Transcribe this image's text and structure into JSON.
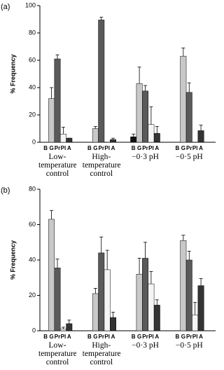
{
  "chart_data": [
    {
      "type": "bar",
      "panel_label": "(a)",
      "y_label": "% Frequency",
      "categories": [
        "Low-temperature control",
        "High-temperature control",
        "−0·3 pH",
        "−0·5 pH"
      ],
      "series": [
        {
          "name": "B",
          "color": "#111111",
          "values": [
            0,
            0,
            4,
            0
          ],
          "errors": [
            0,
            0,
            2,
            0
          ]
        },
        {
          "name": "G",
          "color": "#c8c8c8",
          "values": [
            32,
            10,
            43,
            63
          ],
          "errors": [
            8,
            1.5,
            12,
            6
          ]
        },
        {
          "name": "Pr",
          "color": "#5a5a5a",
          "values": [
            61,
            89.5,
            37.5,
            36.5
          ],
          "errors": [
            3,
            2,
            4,
            7
          ]
        },
        {
          "name": "Pl",
          "color": "#f4f4f4",
          "values": [
            6,
            0,
            13,
            0
          ],
          "errors": [
            5,
            0,
            13,
            0
          ]
        },
        {
          "name": "A",
          "color": "#333333",
          "values": [
            3,
            2,
            6.5,
            8.5
          ],
          "errors": [
            0,
            1,
            5,
            4
          ]
        }
      ],
      "ylim": [
        0,
        100
      ],
      "yticks": [
        0,
        20,
        40,
        60,
        80,
        100
      ]
    },
    {
      "type": "bar",
      "panel_label": "(b)",
      "y_label": "% Frequency",
      "categories": [
        "Low-temperature control",
        "High-temperature control",
        "−0·3 pH",
        "−0·5 pH"
      ],
      "series": [
        {
          "name": "B",
          "color": "#111111",
          "values": [
            0,
            0,
            0,
            0
          ],
          "errors": [
            0,
            0,
            0,
            0
          ]
        },
        {
          "name": "G",
          "color": "#c8c8c8",
          "values": [
            63,
            21,
            32,
            51
          ],
          "errors": [
            5,
            3,
            9,
            3
          ]
        },
        {
          "name": "Pr",
          "color": "#5a5a5a",
          "values": [
            35.5,
            44,
            41,
            40
          ],
          "errors": [
            5,
            9,
            9,
            5
          ]
        },
        {
          "name": "Pl",
          "color": "#f4f4f4",
          "values": [
            1,
            34.5,
            26.5,
            9
          ],
          "errors": [
            1,
            11,
            7,
            7
          ]
        },
        {
          "name": "A",
          "color": "#333333",
          "values": [
            4,
            7.5,
            14.5,
            25.5
          ],
          "errors": [
            2,
            3,
            3,
            4
          ]
        }
      ],
      "ylim": [
        0,
        80
      ],
      "yticks": [
        0,
        20,
        40,
        60,
        80
      ]
    }
  ]
}
